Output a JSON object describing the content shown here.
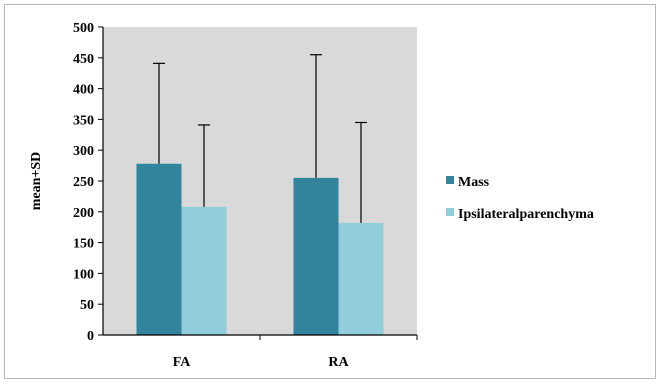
{
  "chart_data": {
    "type": "bar",
    "categories": [
      "FA",
      "RA"
    ],
    "series": [
      {
        "name": "Mass",
        "values": [
          278,
          255
        ],
        "error_plus": [
          163,
          200
        ]
      },
      {
        "name": "Ipsilateralparenchyma",
        "values": [
          208,
          182
        ],
        "error_plus": [
          133,
          163
        ]
      }
    ],
    "ylabel": "mean+SD",
    "ylim": [
      0,
      500
    ],
    "yticks": [
      0,
      50,
      100,
      150,
      200,
      250,
      300,
      350,
      400,
      450,
      500
    ],
    "grid": false,
    "legend_position": "right",
    "plot_background": "#d9d9d9",
    "colors": [
      "#31849b",
      "#92cddc"
    ]
  }
}
